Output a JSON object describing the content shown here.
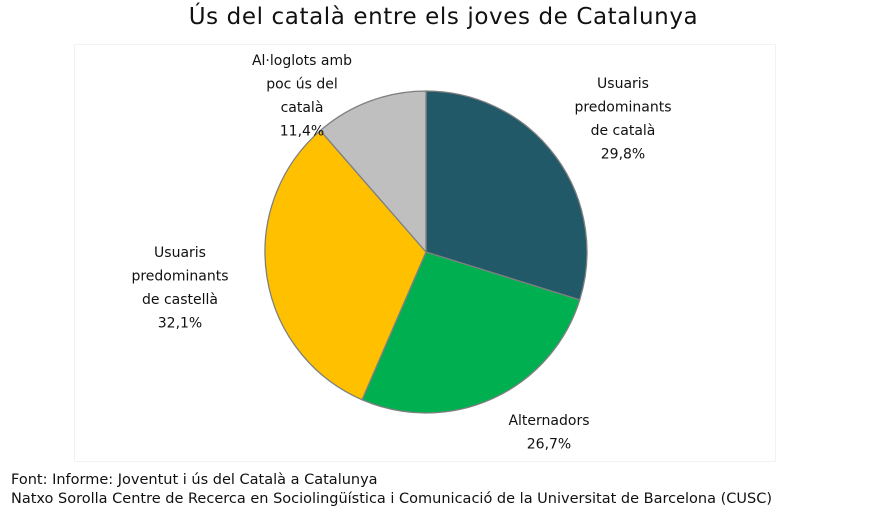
{
  "chart_data": {
    "type": "pie",
    "title": "Ús del català entre els joves de Catalunya",
    "start_angle_deg": 0,
    "direction": "clockwise",
    "slices": [
      {
        "label_lines": [
          "Usuaris",
          "predominants",
          "de català"
        ],
        "value": 29.8,
        "value_label": "29,8%",
        "color": "#215968"
      },
      {
        "label_lines": [
          "Alternadors"
        ],
        "value": 26.7,
        "value_label": "26,7%",
        "color": "#00B050"
      },
      {
        "label_lines": [
          "Usuaris",
          "predominants",
          "de castellà"
        ],
        "value": 32.1,
        "value_label": "32,1%",
        "color": "#FFC000"
      },
      {
        "label_lines": [
          "Al·loglots amb",
          "poc ús del",
          "català"
        ],
        "value": 11.4,
        "value_label": "11,4%",
        "color": "#BFBFBF"
      }
    ]
  },
  "footer": {
    "line1": "Font: Informe: Joventut i ús del Català a Catalunya",
    "line2": "Natxo Sorolla Centre de Recerca en Sociolingüística i Comunicació de la Universitat de Barcelona (CUSC)"
  }
}
